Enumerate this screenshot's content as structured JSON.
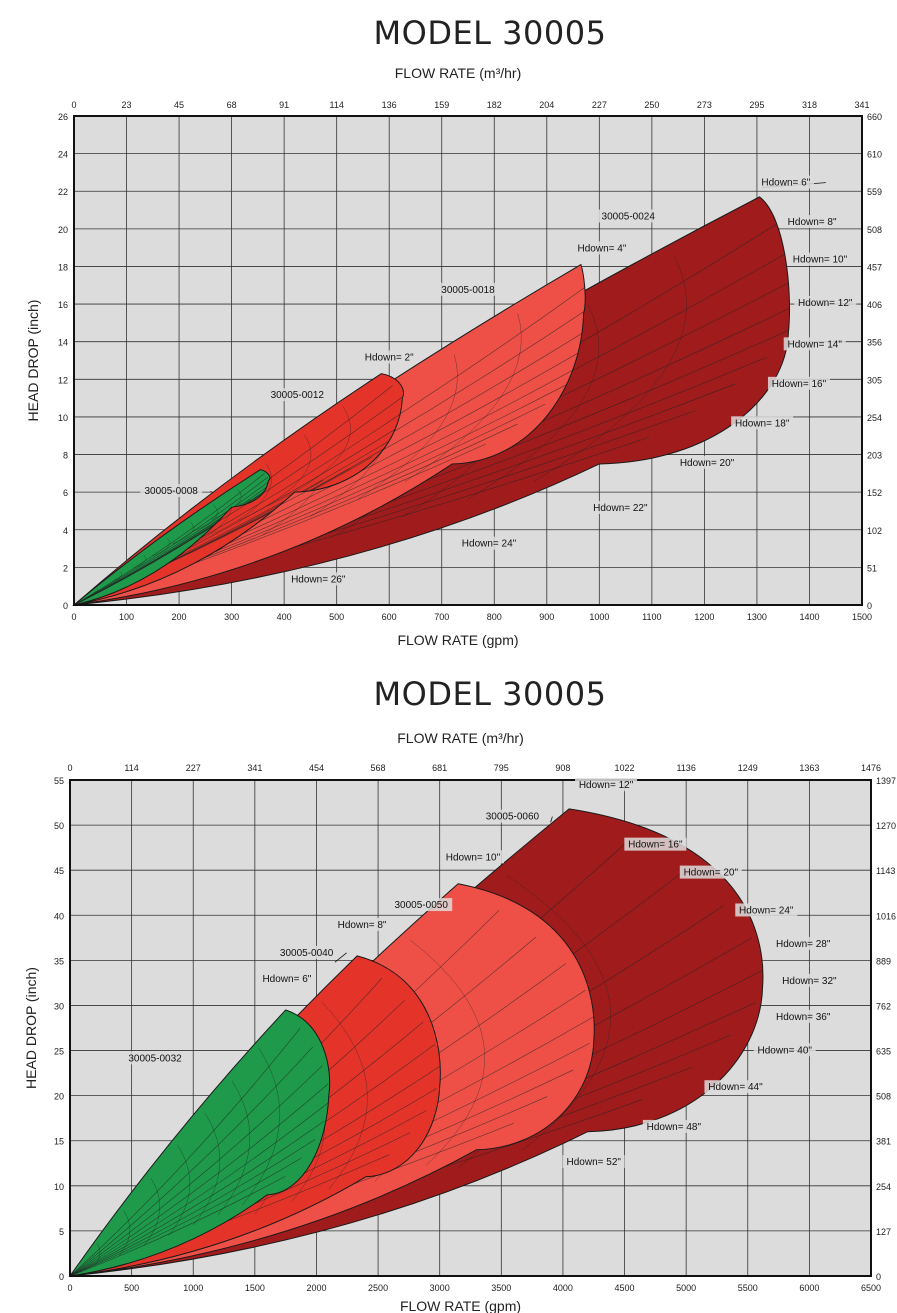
{
  "chart_data": [
    {
      "type": "area",
      "title": "MODEL 30005",
      "top_axis_label": "FLOW RATE (m³/hr)",
      "xlabel": "FLOW RATE (gpm)",
      "ylabel": "HEAD DROP (inch)",
      "xlim": [
        0,
        1500
      ],
      "ylim": [
        0,
        26
      ],
      "x_ticks": [
        0,
        100,
        200,
        300,
        400,
        500,
        600,
        700,
        800,
        900,
        1000,
        1100,
        1200,
        1300,
        1400,
        1500
      ],
      "y_ticks": [
        0,
        2,
        4,
        6,
        8,
        10,
        12,
        14,
        16,
        18,
        20,
        22,
        24,
        26
      ],
      "top_tick_labels": [
        "0",
        "23",
        "45",
        "68",
        "91",
        "114",
        "136",
        "159",
        "182",
        "204",
        "227",
        "250",
        "273",
        "295",
        "318",
        "341"
      ],
      "right_tick_labels": [
        "0",
        "51",
        "102",
        "152",
        "203",
        "254",
        "305",
        "356",
        "406",
        "457",
        "508",
        "559",
        "610",
        "660"
      ],
      "grid": true,
      "series": [
        {
          "name": "30005-0024",
          "color": "#a01c1c",
          "tip": [
            1305,
            21.7
          ],
          "bulge": [
            1360,
            14.5
          ],
          "lower": [
            1000,
            7.5
          ],
          "depth": 0.55
        },
        {
          "name": "30005-0018",
          "color": "#ee5048",
          "tip": [
            965,
            18.1
          ],
          "bulge": [
            970,
            15.5
          ],
          "lower": [
            720,
            7.5
          ],
          "depth": 0.45
        },
        {
          "name": "30005-0012",
          "color": "#e4342a",
          "tip": [
            585,
            12.3
          ],
          "bulge": [
            625,
            11.0
          ],
          "lower": [
            420,
            6.0
          ],
          "depth": 0.4
        },
        {
          "name": "30005-0008",
          "color": "#1e9a4a",
          "tip": [
            355,
            7.2
          ],
          "bulge": [
            370,
            6.6
          ],
          "lower": [
            300,
            5.2
          ],
          "depth": 0.3
        }
      ],
      "annotations": [
        {
          "text": "30005-0024",
          "at": [
            1055,
            20.5
          ],
          "line_to": null
        },
        {
          "text": "30005-0018",
          "at": [
            750,
            16.6
          ],
          "line_to": null
        },
        {
          "text": "30005-0012",
          "at": [
            425,
            11.0
          ],
          "line_to": null
        },
        {
          "text": "30005-0008",
          "at": [
            185,
            5.9
          ],
          "line_to": [
            260,
            6.0
          ]
        },
        {
          "text": "Hdown= 6\"",
          "at": [
            1355,
            22.3
          ],
          "line_to": [
            1310,
            22.2
          ]
        },
        {
          "text": "Hdown= 8\"",
          "at": [
            1405,
            20.2
          ],
          "line_to": null
        },
        {
          "text": "Hdown= 10\"",
          "at": [
            1420,
            18.2
          ],
          "line_to": null
        },
        {
          "text": "Hdown= 12\"",
          "at": [
            1430,
            15.9
          ],
          "line_to": null
        },
        {
          "text": "Hdown= 14\"",
          "at": [
            1410,
            13.7
          ],
          "line_to": null
        },
        {
          "text": "Hdown= 16\"",
          "at": [
            1380,
            11.6
          ],
          "line_to": null
        },
        {
          "text": "Hdown= 18\"",
          "at": [
            1310,
            9.5
          ],
          "line_to": null
        },
        {
          "text": "Hdown= 20\"",
          "at": [
            1205,
            7.4
          ],
          "line_to": null
        },
        {
          "text": "Hdown= 22\"",
          "at": [
            1040,
            5.0
          ],
          "line_to": null
        },
        {
          "text": "Hdown= 24\"",
          "at": [
            790,
            3.1
          ],
          "line_to": null
        },
        {
          "text": "Hdown= 26\"",
          "at": [
            465,
            1.2
          ],
          "line_to": null
        },
        {
          "text": "Hdown= 4\"",
          "at": [
            1005,
            18.8
          ],
          "line_to": null
        },
        {
          "text": "Hdown= 2\"",
          "at": [
            600,
            13.0
          ],
          "line_to": null
        }
      ]
    },
    {
      "type": "area",
      "title": "MODEL 30005",
      "top_axis_label": "FLOW RATE (m³/hr)",
      "xlabel": "FLOW RATE (gpm)",
      "ylabel": "HEAD DROP (inch)",
      "xlim": [
        0,
        6500
      ],
      "ylim": [
        0,
        55
      ],
      "x_ticks": [
        0,
        500,
        1000,
        1500,
        2000,
        2500,
        3000,
        3500,
        4000,
        4500,
        5000,
        5500,
        6000,
        6500
      ],
      "y_ticks": [
        0,
        5,
        10,
        15,
        20,
        25,
        30,
        35,
        40,
        45,
        50,
        55
      ],
      "top_tick_labels": [
        "0",
        "114",
        "227",
        "341",
        "454",
        "568",
        "681",
        "795",
        "908",
        "1022",
        "1136",
        "1249",
        "1363",
        "1476"
      ],
      "right_tick_labels": [
        "0",
        "127",
        "254",
        "381",
        "508",
        "635",
        "762",
        "889",
        "1016",
        "1143",
        "1270",
        "1397"
      ],
      "grid": true,
      "series": [
        {
          "name": "30005-0060",
          "color": "#a01c1c",
          "tip": [
            4050,
            51.8
          ],
          "bulge": [
            5620,
            32.0
          ],
          "lower": [
            4200,
            16.0
          ],
          "depth": 0.45
        },
        {
          "name": "30005-0050",
          "color": "#ee5048",
          "tip": [
            3150,
            43.5
          ],
          "bulge": [
            4250,
            26.0
          ],
          "lower": [
            3300,
            14.0
          ],
          "depth": 0.4
        },
        {
          "name": "30005-0040",
          "color": "#e4342a",
          "tip": [
            2330,
            35.5
          ],
          "bulge": [
            3000,
            21.0
          ],
          "lower": [
            2400,
            11.0
          ],
          "depth": 0.35
        },
        {
          "name": "30005-0032",
          "color": "#1e9a4a",
          "tip": [
            1750,
            29.5
          ],
          "bulge": [
            2100,
            20.0
          ],
          "lower": [
            1600,
            9.0
          ],
          "depth": 0.3
        }
      ],
      "annotations": [
        {
          "text": "30005-0060",
          "at": [
            3590,
            50.6
          ],
          "line_to": [
            3900,
            50.3
          ]
        },
        {
          "text": "30005-0050",
          "at": [
            2850,
            40.8
          ],
          "line_to": null
        },
        {
          "text": "30005-0040",
          "at": [
            1920,
            35.5
          ],
          "line_to": [
            2150,
            34.8
          ]
        },
        {
          "text": "30005-0032",
          "at": [
            690,
            23.8
          ],
          "line_to": null
        },
        {
          "text": "Hdown= 12\"",
          "at": [
            4350,
            54.1
          ],
          "line_to": null
        },
        {
          "text": "Hdown= 16\"",
          "at": [
            4750,
            47.5
          ],
          "line_to": null
        },
        {
          "text": "Hdown= 20\"",
          "at": [
            5200,
            44.4
          ],
          "line_to": null
        },
        {
          "text": "Hdown= 24\"",
          "at": [
            5650,
            40.2
          ],
          "line_to": null
        },
        {
          "text": "Hdown= 28\"",
          "at": [
            5950,
            36.5
          ],
          "line_to": null
        },
        {
          "text": "Hdown= 32\"",
          "at": [
            6000,
            32.4
          ],
          "line_to": null
        },
        {
          "text": "Hdown= 36\"",
          "at": [
            5950,
            28.4
          ],
          "line_to": null
        },
        {
          "text": "Hdown= 40\"",
          "at": [
            5800,
            24.7
          ],
          "line_to": null
        },
        {
          "text": "Hdown= 44\"",
          "at": [
            5400,
            20.6
          ],
          "line_to": null
        },
        {
          "text": "Hdown= 48\"",
          "at": [
            4900,
            16.2
          ],
          "line_to": null
        },
        {
          "text": "Hdown= 52\"",
          "at": [
            4250,
            12.3
          ],
          "line_to": null
        },
        {
          "text": "Hdown= 10\"",
          "at": [
            3270,
            46.1
          ],
          "line_to": null
        },
        {
          "text": "Hdown= 8\"",
          "at": [
            2370,
            38.6
          ],
          "line_to": null
        },
        {
          "text": "Hdown= 6\"",
          "at": [
            1760,
            32.6
          ],
          "line_to": null
        }
      ]
    }
  ]
}
